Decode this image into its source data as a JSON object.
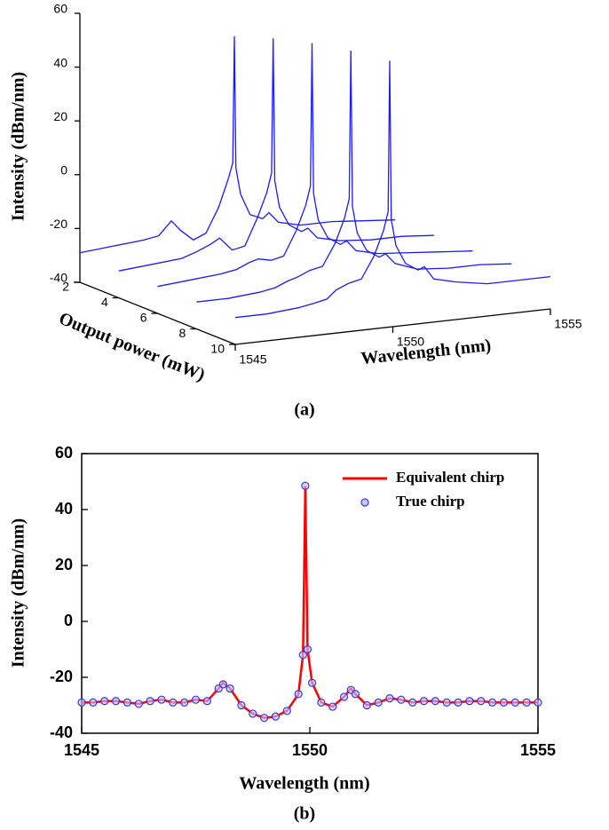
{
  "chart_data": [
    {
      "type": "waterfall3d",
      "caption": "(a)",
      "x_label": "Wavelength (nm)",
      "y_label": "Output power (mW)",
      "z_label": "Intensity (dBm/nm)",
      "x": [
        1545,
        1546,
        1547,
        1547.5,
        1547.9,
        1548.2,
        1548.6,
        1549,
        1549.4,
        1549.7,
        1549.85,
        1549.9,
        1549.95,
        1550.1,
        1550.4,
        1550.8,
        1551,
        1551.3,
        1552,
        1553,
        1554,
        1555
      ],
      "series": [
        {
          "power": 2,
          "color": "#1a1aff",
          "values": [
            -29,
            -28,
            -27,
            -26,
            -21,
            -25,
            -29,
            -27,
            -18,
            -8,
            -2,
            45,
            -4,
            -14,
            -22,
            -24,
            -22,
            -26,
            -28,
            -28,
            -29,
            -30
          ]
        },
        {
          "power": 4,
          "color": "#1a1aff",
          "values": [
            -30,
            -29,
            -28,
            -26,
            -24,
            -22,
            -27,
            -26,
            -16,
            -7,
            0,
            50,
            -3,
            -13,
            -20,
            -23,
            -22,
            -26,
            -28,
            -29,
            -29,
            -30
          ]
        },
        {
          "power": 6,
          "color": "#1a1aff",
          "values": [
            -30,
            -29,
            -28,
            -27,
            -25,
            -24,
            -25,
            -24,
            -15,
            -6,
            1,
            54,
            -2,
            -12,
            -19,
            -22,
            -21,
            -25,
            -27,
            -28,
            -29,
            -30
          ]
        },
        {
          "power": 8,
          "color": "#1a1aff",
          "values": [
            -30,
            -30,
            -29,
            -28,
            -26,
            -25,
            -23,
            -22,
            -14,
            -5,
            2,
            57,
            -1,
            -11,
            -18,
            -21,
            -20,
            -24,
            -27,
            -28,
            -28,
            -29
          ]
        },
        {
          "power": 10,
          "color": "#1a1aff",
          "values": [
            -30,
            -30,
            -29,
            -28,
            -27,
            -24,
            -22,
            -21,
            -13,
            -4,
            3,
            59,
            0,
            -10,
            -17,
            -20,
            -19,
            -24,
            -26,
            -28,
            -28,
            -28
          ]
        }
      ],
      "xlim": [
        1545,
        1555
      ],
      "xticks": [
        1545,
        1550,
        1555
      ],
      "ylim": [
        2,
        10
      ],
      "yticks": [
        2,
        4,
        6,
        8,
        10
      ],
      "zlim": [
        -40,
        60
      ],
      "zticks": [
        -40,
        -20,
        0,
        20,
        40,
        60
      ]
    },
    {
      "type": "line",
      "caption": "(b)",
      "x_label": "Wavelength (nm)",
      "y_label": "Intensity (dBm/nm)",
      "x": [
        1545,
        1545.25,
        1545.5,
        1545.75,
        1546,
        1546.25,
        1546.5,
        1546.75,
        1547,
        1547.25,
        1547.5,
        1547.75,
        1548,
        1548.1,
        1548.25,
        1548.5,
        1548.75,
        1549,
        1549.25,
        1549.5,
        1549.75,
        1549.85,
        1549.9,
        1549.95,
        1550.05,
        1550.25,
        1550.5,
        1550.75,
        1550.9,
        1551,
        1551.25,
        1551.5,
        1551.75,
        1552,
        1552.25,
        1552.5,
        1552.75,
        1553,
        1553.25,
        1553.5,
        1553.75,
        1554,
        1554.25,
        1554.5,
        1554.75,
        1555
      ],
      "series": [
        {
          "name": "Equivalent chirp",
          "type": "line",
          "color": "#ff0000",
          "values": [
            -29,
            -29,
            -28.5,
            -28.5,
            -29,
            -29.5,
            -28.5,
            -28,
            -29,
            -29,
            -28,
            -28.5,
            -24,
            -22,
            -24,
            -30,
            -33,
            -34.5,
            -34,
            -32,
            -26,
            -12,
            48.5,
            -10,
            -22,
            -29,
            -30.5,
            -27,
            -24,
            -26,
            -30,
            -29,
            -27.5,
            -28,
            -29,
            -28.5,
            -28.5,
            -29,
            -29,
            -28.5,
            -28.5,
            -29,
            -29,
            -29,
            -29,
            -29
          ]
        },
        {
          "name": "True chirp",
          "type": "scatter",
          "color": "#3333ff",
          "values": [
            -29,
            -29,
            -28.5,
            -28.5,
            -29,
            -29.5,
            -28.5,
            -28,
            -29,
            -29,
            -28,
            -28.5,
            -24,
            -22.5,
            -24,
            -30,
            -33,
            -34.5,
            -34,
            -32,
            -26,
            -12,
            48.5,
            -10,
            -22,
            -29,
            -30.5,
            -27,
            -24.5,
            -26,
            -30,
            -29,
            -27.5,
            -28,
            -29,
            -28.5,
            -28.5,
            -29,
            -29,
            -28.5,
            -28.5,
            -29,
            -29,
            -29,
            -29,
            -29
          ]
        }
      ],
      "xlim": [
        1545,
        1555
      ],
      "xticks": [
        1545,
        1550,
        1555
      ],
      "ylim": [
        -40,
        60
      ],
      "yticks": [
        -40,
        -20,
        0,
        20,
        40,
        60
      ],
      "legend": "upper right"
    }
  ]
}
